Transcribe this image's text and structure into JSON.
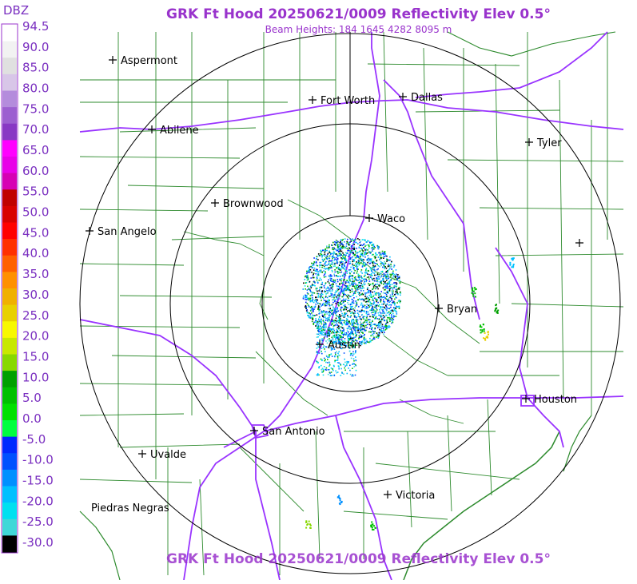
{
  "header": {
    "title": "GRK Ft Hood 20250621/0009 Reflectivity Elev 0.5°",
    "subtitle": "Beam Heights: 184 1645 4282 8095 m",
    "footer_title": "GRK Ft Hood 20250621/0009 Reflectivity Elev 0.5°"
  },
  "colorbar": {
    "unit": "DBZ",
    "ticks": [
      "94.5",
      "90.0",
      "85.0",
      "80.0",
      "75.0",
      "70.0",
      "65.0",
      "60.0",
      "55.0",
      "50.0",
      "45.0",
      "40.0",
      "35.0",
      "30.0",
      "25.0",
      "20.0",
      "15.0",
      "10.0",
      "5.0",
      "0.0",
      "-5.0",
      "-10.0",
      "-15.0",
      "-20.0",
      "-25.0",
      "-30.0"
    ],
    "colors": [
      "#ffffff",
      "#f2f2f2",
      "#e0e0e0",
      "#d8c6e8",
      "#b48cdc",
      "#9c5fd0",
      "#8838c4",
      "#ff00ff",
      "#e800e8",
      "#d600b4",
      "#c00000",
      "#d80000",
      "#ff0000",
      "#ff3000",
      "#ff6000",
      "#ff9000",
      "#f0b000",
      "#e8d000",
      "#f8f800",
      "#c8e800",
      "#88d800",
      "#00a000",
      "#00c000",
      "#00e000",
      "#00ff40",
      "#0028ff",
      "#0050ff",
      "#0090ff",
      "#00c0ff",
      "#00e0f0",
      "#40d8d8",
      "#000000"
    ]
  },
  "cities": [
    {
      "name": "Aspermont"
    },
    {
      "name": "Fort Worth"
    },
    {
      "name": "Dallas"
    },
    {
      "name": "Abilene"
    },
    {
      "name": "Tyler"
    },
    {
      "name": "Brownwood"
    },
    {
      "name": "Waco"
    },
    {
      "name": "San Angelo"
    },
    {
      "name": "Bryan"
    },
    {
      "name": "Austin"
    },
    {
      "name": "Houston"
    },
    {
      "name": "San Antonio"
    },
    {
      "name": "Uvalde"
    },
    {
      "name": "Victoria"
    },
    {
      "name": "Piedras Negras"
    }
  ],
  "colors": {
    "title": "#9933cc",
    "county_lines": "#2e8b2e",
    "highways": "#9933ff",
    "range_rings": "#000000"
  }
}
